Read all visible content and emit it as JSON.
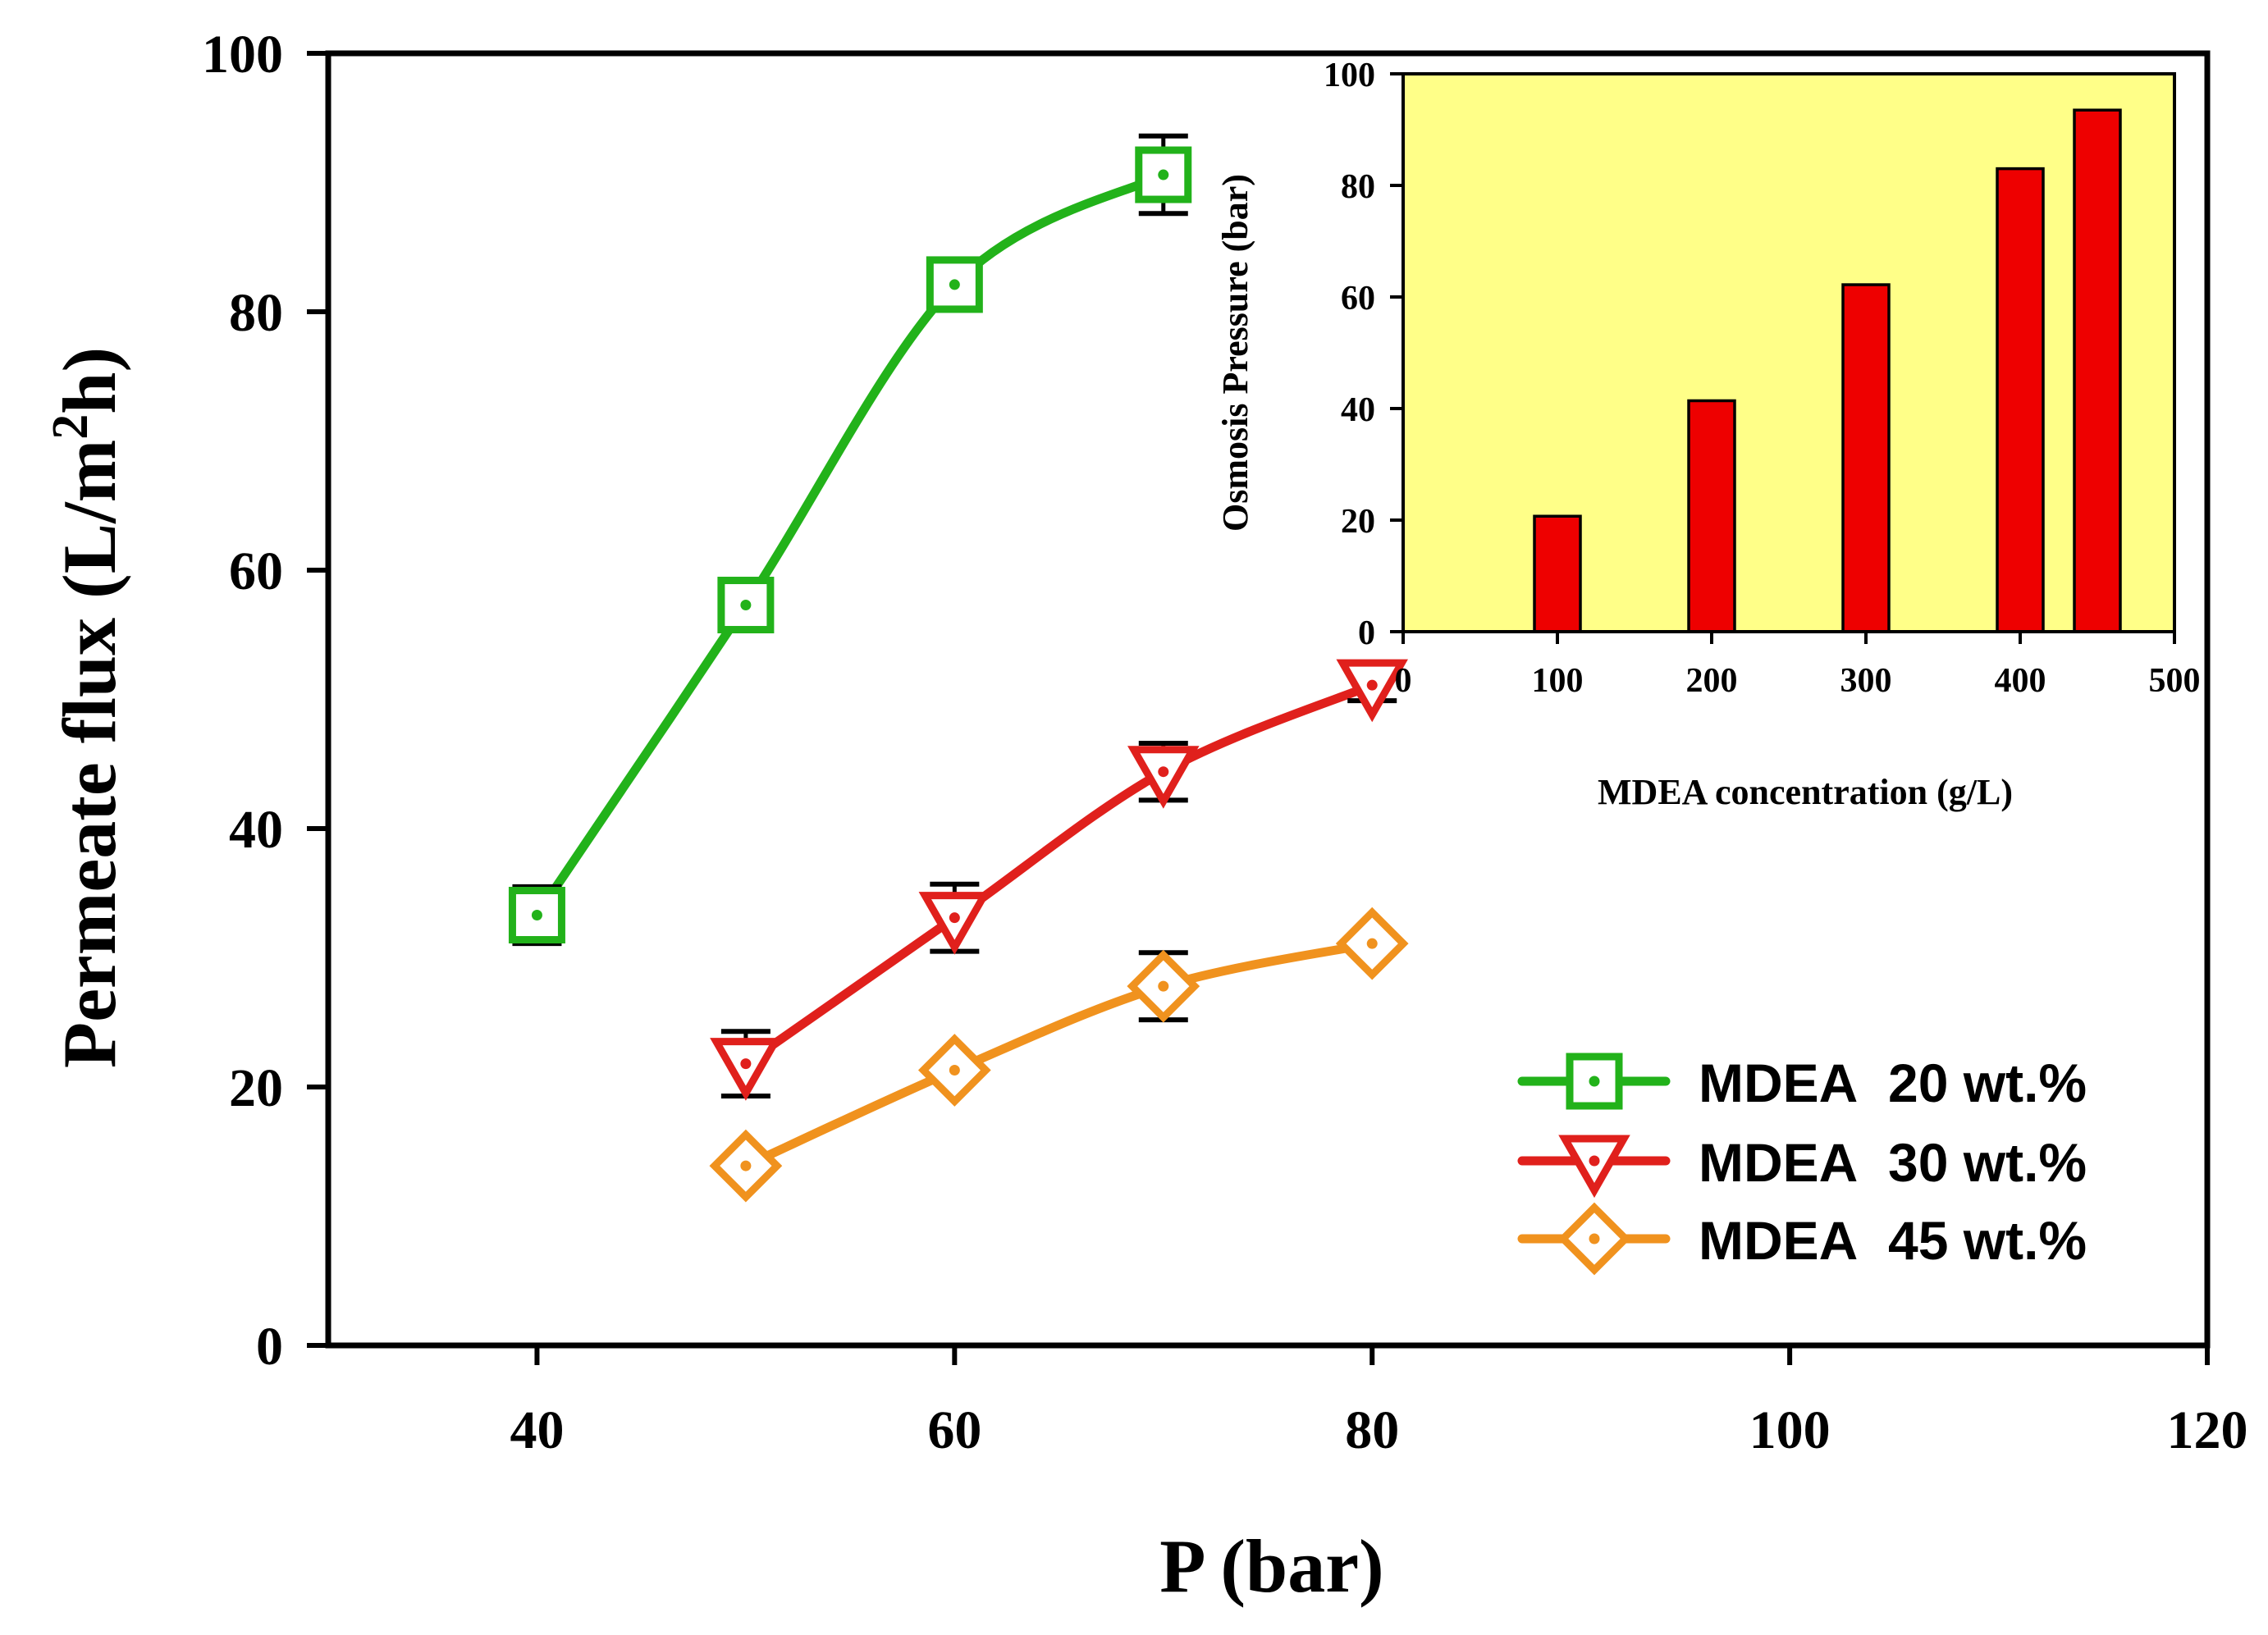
{
  "chart_data": [
    {
      "type": "line",
      "name": "main",
      "xlabel": "P (bar)",
      "ylabel": "Permeate flux (L/m",
      "ylabel_sup": "2",
      "ylabel_tail": "h)",
      "xlim": [
        30,
        120
      ],
      "ylim": [
        0,
        100
      ],
      "xticks": [
        40,
        60,
        80,
        100,
        120
      ],
      "yticks": [
        0,
        20,
        40,
        60,
        80,
        100
      ],
      "legend_position": "bottom-right",
      "series": [
        {
          "name": "MDEA  20 wt.%",
          "marker": "square",
          "color": "#22b21a",
          "x": [
            40,
            50,
            60,
            70
          ],
          "y": [
            33.3,
            57.3,
            82.1,
            90.6
          ],
          "err": [
            2.2,
            0,
            1.8,
            3.0
          ]
        },
        {
          "name": "MDEA  30 wt.%",
          "marker": "triangle-down",
          "color": "#e0201c",
          "x": [
            50,
            60,
            70,
            80
          ],
          "y": [
            21.8,
            33.1,
            44.4,
            51.1
          ],
          "err": [
            2.5,
            2.6,
            2.2,
            1.2
          ]
        },
        {
          "name": "MDEA  45 wt.%",
          "marker": "diamond",
          "color": "#f0921e",
          "x": [
            50,
            60,
            70,
            80
          ],
          "y": [
            13.9,
            21.3,
            27.8,
            31.1
          ],
          "err": [
            0,
            0,
            2.6,
            0
          ]
        }
      ]
    },
    {
      "type": "bar",
      "name": "inset",
      "xlabel": "MDEA concentration (g/L)",
      "ylabel": "Osmosis Pressure (bar)",
      "xlim": [
        0,
        500
      ],
      "ylim": [
        0,
        100
      ],
      "xticks": [
        0,
        100,
        200,
        300,
        400,
        500
      ],
      "yticks": [
        0,
        20,
        40,
        60,
        80,
        100
      ],
      "background": "#ffff88",
      "bar_color": "#ee0000",
      "x": [
        100,
        200,
        300,
        400,
        450
      ],
      "values": [
        20.7,
        41.4,
        62.2,
        83.0,
        93.5
      ]
    }
  ]
}
